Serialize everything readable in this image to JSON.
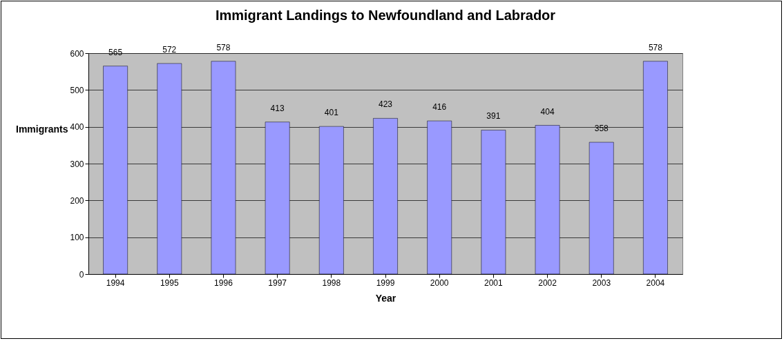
{
  "chart_data": {
    "type": "bar",
    "title": "Immigrant Landings to Newfoundland and Labrador",
    "xlabel": "Year",
    "ylabel": "Immigrants",
    "categories": [
      "1994",
      "1995",
      "1996",
      "1997",
      "1998",
      "1999",
      "2000",
      "2001",
      "2002",
      "2003",
      "2004"
    ],
    "values": [
      565,
      572,
      578,
      413,
      401,
      423,
      416,
      391,
      404,
      358,
      578
    ],
    "color": "#9999ff",
    "ylim": [
      0,
      600
    ],
    "yticks": [
      0,
      100,
      200,
      300,
      400,
      500,
      600
    ],
    "grid": "y",
    "data_labels": true
  }
}
